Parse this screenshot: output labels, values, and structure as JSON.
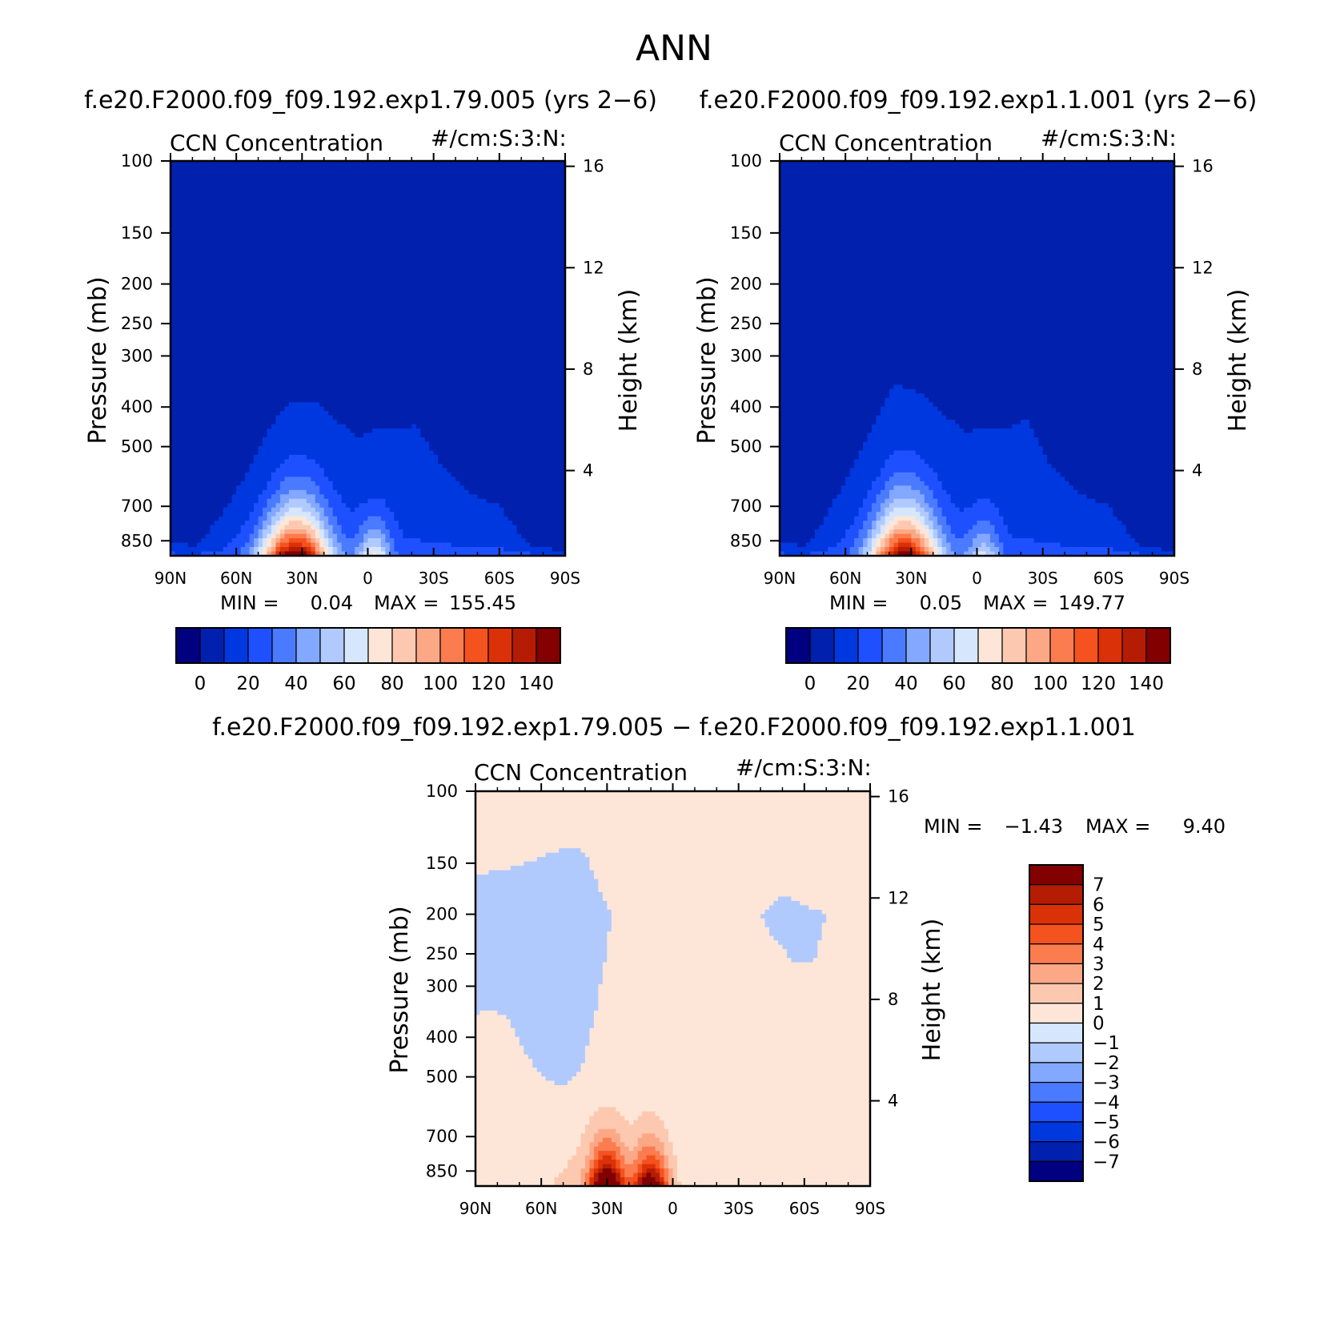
{
  "title": "ANN",
  "chart_data": [
    {
      "type": "heatmap",
      "panel_title": "f.e20.F2000.f09_f09.192.exp1.79.005 (yrs 2−6)",
      "title": "CCN Concentration",
      "units": "#/cm:S:3:N:",
      "ylabel": "Pressure (mb)",
      "ylabel2": "Height (km)",
      "xlabel": "",
      "x_ticks": [
        "90N",
        "60N",
        "30N",
        "0",
        "30S",
        "60S",
        "90S"
      ],
      "lat_ticks": [
        90,
        60,
        30,
        0,
        -30,
        -60,
        -90
      ],
      "xlim": [
        90,
        -90
      ],
      "y_ticks": [
        100,
        150,
        200,
        250,
        300,
        400,
        500,
        700,
        850
      ],
      "ylim": [
        100,
        925
      ],
      "height_ticks": [
        16,
        12,
        8,
        4
      ],
      "min_label": "MIN =",
      "min_value": "0.04",
      "max_label": "MAX =",
      "max_value": "155.45",
      "min": 0.04,
      "max": 155.45,
      "colorbar_levels": [
        0,
        10,
        20,
        30,
        40,
        50,
        60,
        70,
        80,
        90,
        100,
        110,
        120,
        130,
        140
      ],
      "colorbar_labels": [
        "0",
        "20",
        "40",
        "60",
        "80",
        "100",
        "120",
        "140"
      ],
      "core": {
        "lat": 33,
        "value": 155.45
      },
      "secondary": {
        "lat": -3,
        "value": 75
      },
      "top_level_mb": [
        [
          90,
          850
        ],
        [
          78,
          880
        ],
        [
          60,
          640
        ],
        [
          45,
          450
        ],
        [
          35,
          385
        ],
        [
          25,
          385
        ],
        [
          12,
          440
        ],
        [
          5,
          475
        ],
        [
          -5,
          450
        ],
        [
          -15,
          455
        ],
        [
          -22,
          440
        ],
        [
          -35,
          570
        ],
        [
          -45,
          640
        ],
        [
          -60,
          700
        ],
        [
          -75,
          880
        ],
        [
          -90,
          900
        ]
      ]
    },
    {
      "type": "heatmap",
      "panel_title": "f.e20.F2000.f09_f09.192.exp1.1.001 (yrs 2−6)",
      "title": "CCN Concentration",
      "units": "#/cm:S:3:N:",
      "ylabel": "Pressure (mb)",
      "ylabel2": "Height (km)",
      "xlabel": "",
      "x_ticks": [
        "90N",
        "60N",
        "30N",
        "0",
        "30S",
        "60S",
        "90S"
      ],
      "lat_ticks": [
        90,
        60,
        30,
        0,
        -30,
        -60,
        -90
      ],
      "xlim": [
        90,
        -90
      ],
      "y_ticks": [
        100,
        150,
        200,
        250,
        300,
        400,
        500,
        700,
        850
      ],
      "ylim": [
        100,
        925
      ],
      "height_ticks": [
        16,
        12,
        8,
        4
      ],
      "min_label": "MIN =",
      "min_value": "0.05",
      "max_label": "MAX =",
      "max_value": "149.77",
      "min": 0.05,
      "max": 149.77,
      "colorbar_levels": [
        0,
        10,
        20,
        30,
        40,
        50,
        60,
        70,
        80,
        90,
        100,
        110,
        120,
        130,
        140
      ],
      "colorbar_labels": [
        "0",
        "20",
        "40",
        "60",
        "80",
        "100",
        "120",
        "140"
      ],
      "core": {
        "lat": 33,
        "value": 149.77
      },
      "secondary": {
        "lat": -3,
        "value": 65
      },
      "top_level_mb": [
        [
          90,
          850
        ],
        [
          78,
          880
        ],
        [
          60,
          600
        ],
        [
          45,
          420
        ],
        [
          38,
          350
        ],
        [
          25,
          370
        ],
        [
          12,
          430
        ],
        [
          5,
          460
        ],
        [
          -5,
          450
        ],
        [
          -18,
          445
        ],
        [
          -22,
          420
        ],
        [
          -35,
          570
        ],
        [
          -45,
          640
        ],
        [
          -60,
          700
        ],
        [
          -75,
          880
        ],
        [
          -90,
          900
        ]
      ]
    },
    {
      "type": "heatmap",
      "panel_title": "f.e20.F2000.f09_f09.192.exp1.79.005 − f.e20.F2000.f09_f09.192.exp1.1.001",
      "title": "CCN Concentration",
      "units": "#/cm:S:3:N:",
      "ylabel": "Pressure (mb)",
      "ylabel2": "Height (km)",
      "xlabel": "",
      "x_ticks": [
        "90N",
        "60N",
        "30N",
        "0",
        "30S",
        "60S",
        "90S"
      ],
      "lat_ticks": [
        90,
        60,
        30,
        0,
        -30,
        -60,
        -90
      ],
      "xlim": [
        90,
        -90
      ],
      "y_ticks": [
        100,
        150,
        200,
        250,
        300,
        400,
        500,
        700,
        850
      ],
      "ylim": [
        100,
        925
      ],
      "height_ticks": [
        16,
        12,
        8,
        4
      ],
      "min_label": "MIN =",
      "min_value": "−1.43",
      "max_label": "MAX =",
      "max_value": "9.40",
      "min": -1.43,
      "max": 9.4,
      "colorbar_levels": [
        -7,
        -6,
        -5,
        -4,
        -3,
        -2,
        -1,
        0,
        1,
        2,
        3,
        4,
        5,
        6,
        7
      ],
      "colorbar_labels": [
        "7",
        "6",
        "5",
        "4",
        "3",
        "2",
        "1",
        "0",
        "−1",
        "−2",
        "−3",
        "−4",
        "−5",
        "−6",
        "−7"
      ],
      "peaks": [
        {
          "lat": 30,
          "value": 9.4
        },
        {
          "lat": 10,
          "value": 8.5
        }
      ],
      "negative_regions": [
        [
          [
            90,
            160
          ],
          [
            75,
            155
          ],
          [
            60,
            145
          ],
          [
            50,
            138
          ],
          [
            40,
            140
          ],
          [
            28,
            200
          ],
          [
            32,
            280
          ],
          [
            38,
            400
          ],
          [
            42,
            480
          ],
          [
            50,
            525
          ],
          [
            60,
            500
          ],
          [
            68,
            430
          ],
          [
            75,
            360
          ],
          [
            82,
            340
          ],
          [
            90,
            350
          ]
        ],
        [
          [
            -40,
            200
          ],
          [
            -50,
            180
          ],
          [
            -60,
            190
          ],
          [
            -70,
            200
          ],
          [
            -65,
            255
          ],
          [
            -60,
            265
          ],
          [
            -55,
            260
          ],
          [
            -45,
            225
          ]
        ]
      ]
    }
  ],
  "colors": {
    "ccn_levels": [
      "#000080",
      "#0020ad",
      "#0038e0",
      "#1f50ff",
      "#4a7aff",
      "#82a8ff",
      "#b1cafe",
      "#d6e7fd",
      "#fde6d8",
      "#fcc9b0",
      "#fca886",
      "#fb7c4f",
      "#f4521e",
      "#db3108",
      "#b41c04",
      "#820000"
    ],
    "diff_levels": [
      "#000080",
      "#0020ad",
      "#0038e0",
      "#1f50ff",
      "#4a7aff",
      "#82a8ff",
      "#b1cafe",
      "#d6e7fd",
      "#fde6d8",
      "#fcc9b0",
      "#fca886",
      "#fb7c4f",
      "#f4521e",
      "#db3108",
      "#b41c04",
      "#820000"
    ]
  }
}
